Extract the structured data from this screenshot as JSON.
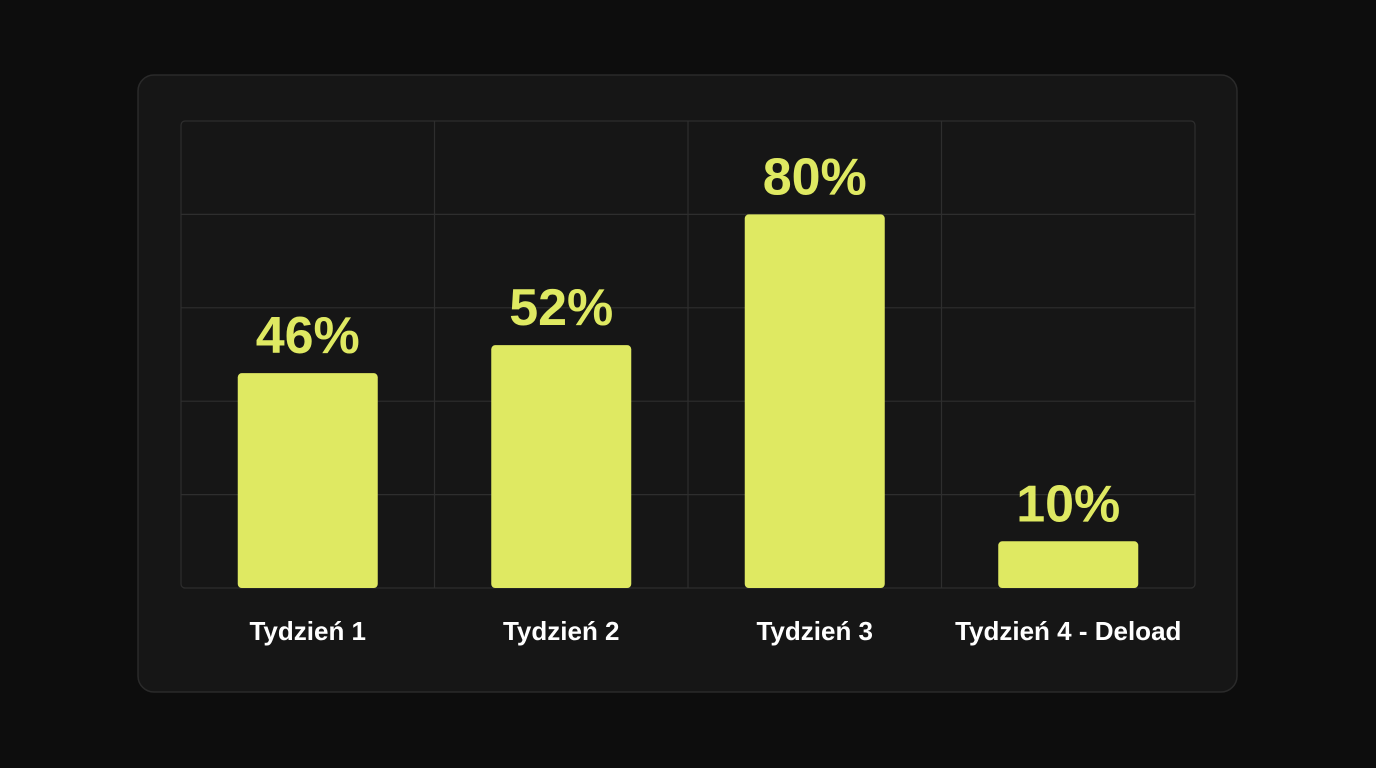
{
  "chart_data": {
    "type": "bar",
    "categories": [
      "Tydzień 1",
      "Tydzień 2",
      "Tydzień 3",
      "Tydzień 4 - Deload"
    ],
    "values": [
      46,
      52,
      80,
      10
    ],
    "value_labels": [
      "46%",
      "52%",
      "80%",
      "10%"
    ],
    "color": "#dfe962",
    "ylim": [
      0,
      100
    ],
    "grid": true
  }
}
